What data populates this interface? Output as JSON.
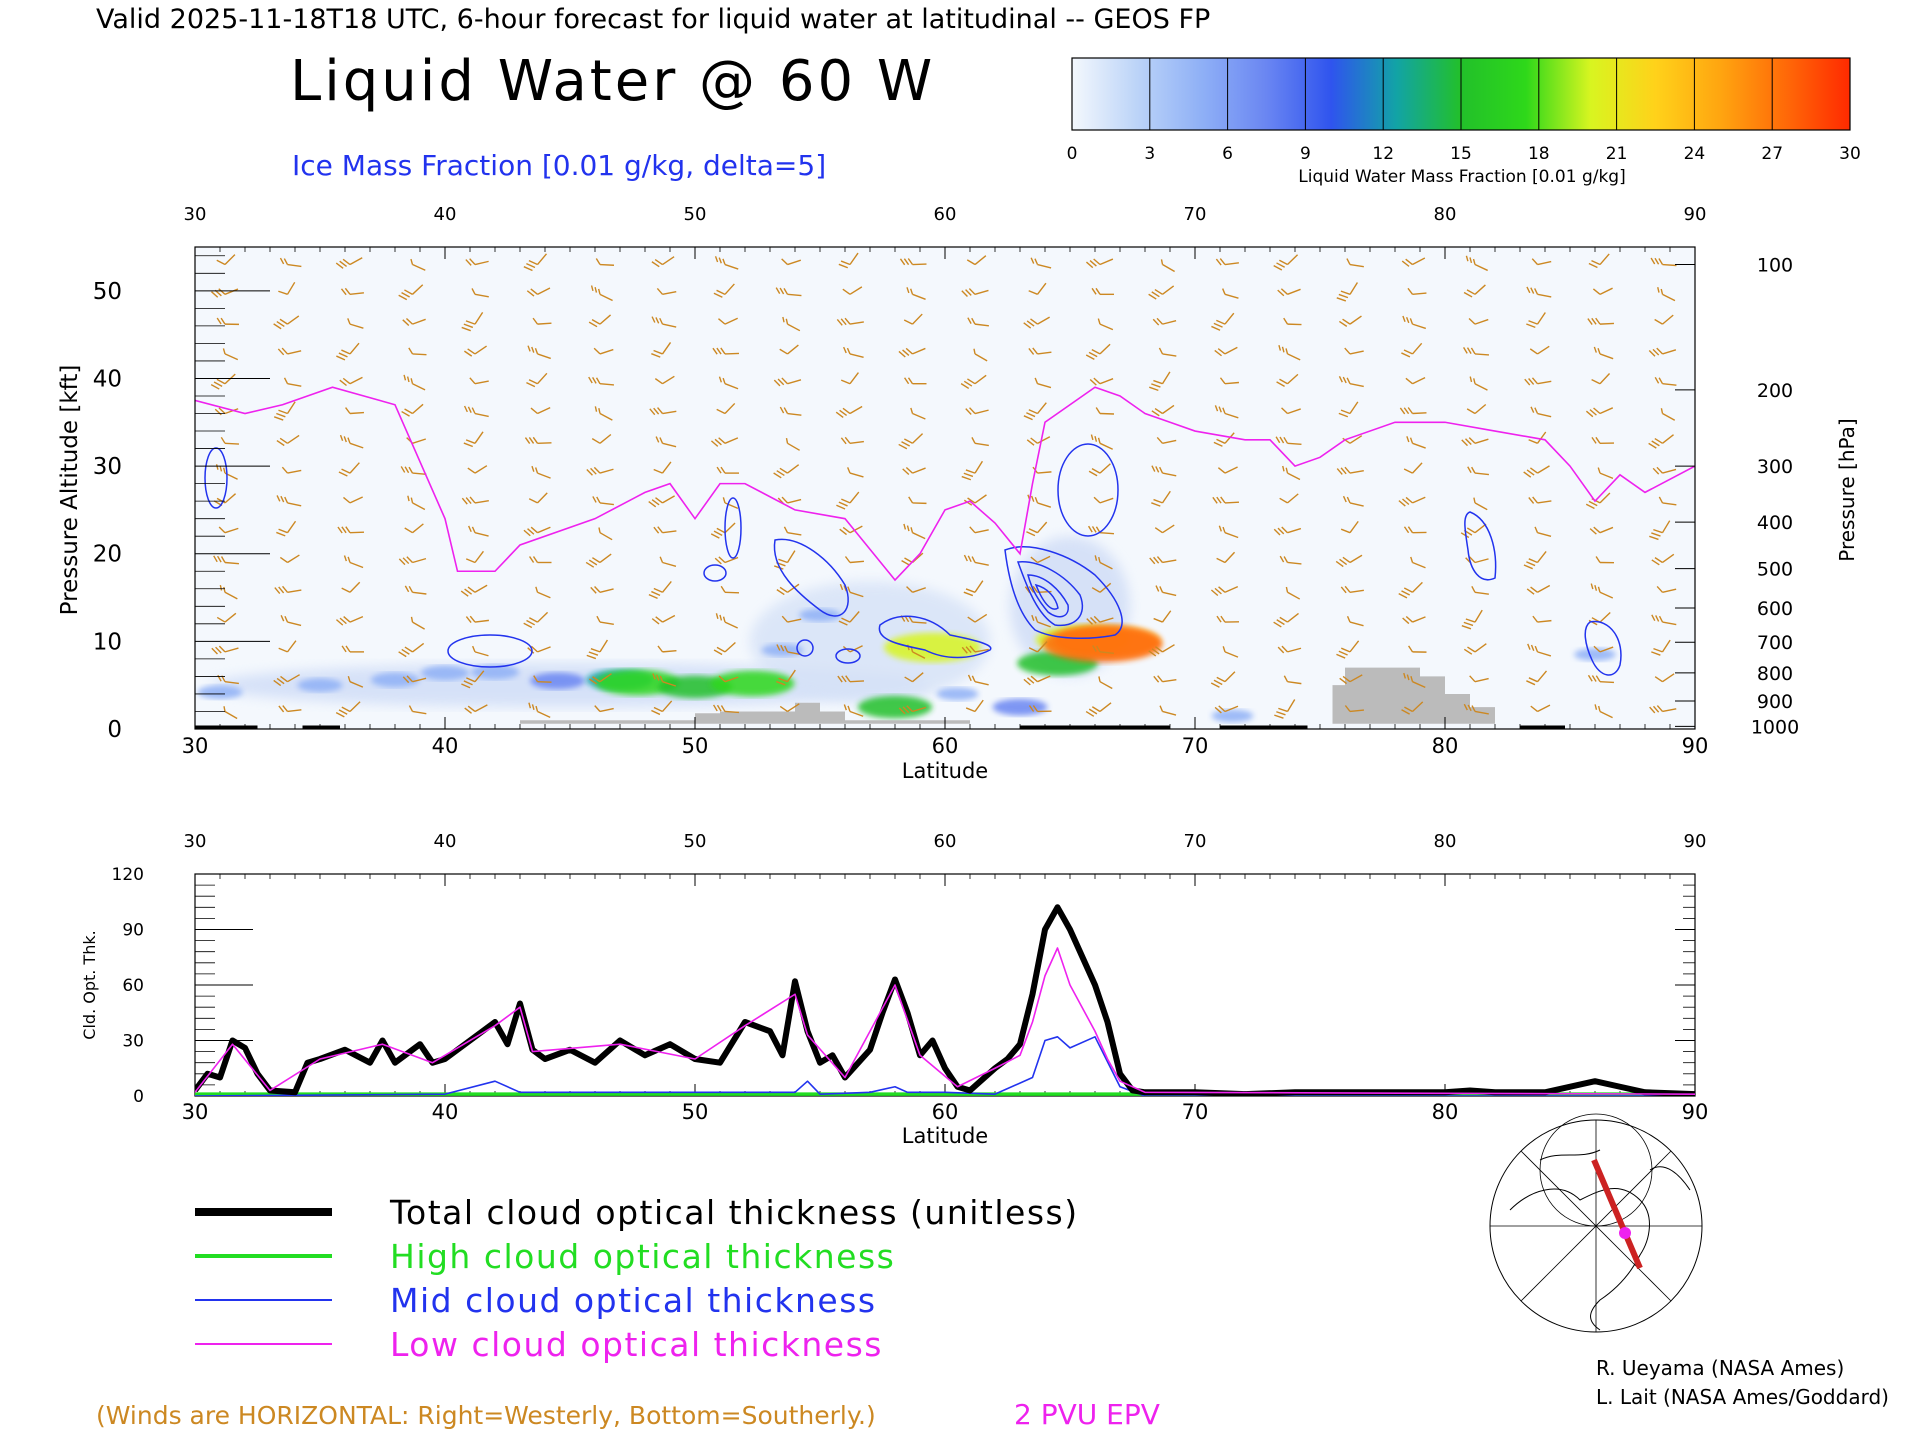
{
  "header": {
    "valid_line": "Valid 2025-11-18T18 UTC, 6-hour forecast for liquid water at latitudinal -- GEOS FP",
    "title": "Liquid Water @ 60 W",
    "subtitle": "Ice Mass Fraction [0.01 g/kg, delta=5]"
  },
  "colorbar": {
    "ticks": [
      "0",
      "3",
      "6",
      "9",
      "12",
      "15",
      "18",
      "21",
      "24",
      "27",
      "30"
    ],
    "label": "Liquid Water Mass Fraction [0.01 g/kg]",
    "colors": [
      "#f4f8fd",
      "#bcd4f8",
      "#8fb0f6",
      "#6a86f2",
      "#2f54ee",
      "#12a3a6",
      "#22c02a",
      "#2ed81a",
      "#d8f520",
      "#ffd21a",
      "#ffa510",
      "#ff6a08",
      "#ff2a00"
    ]
  },
  "legend": {
    "items": [
      {
        "label": "Total cloud optical thickness (unitless)",
        "color": "#000000"
      },
      {
        "label": "High cloud optical thickness",
        "color": "#22dd22"
      },
      {
        "label": "Mid cloud optical thickness",
        "color": "#2233ee"
      },
      {
        "label": "Low cloud optical thickness",
        "color": "#ee22ee"
      }
    ]
  },
  "footer": {
    "winds_note": "(Winds are HORIZONTAL: Right=Westerly, Bottom=Southerly.)",
    "epv_label": "2 PVU EPV",
    "credit_1": "R. Ueyama (NASA Ames)",
    "credit_2": "L. Lait (NASA Ames/Goddard)"
  },
  "colors": {
    "wind": "#cc8822",
    "epv": "#ee22ee",
    "ice": "#2233ee",
    "terrain": "#bbbbbb"
  },
  "chart_data": [
    {
      "type": "heatmap",
      "xlabel": "Latitude",
      "ylabel": "Pressure Altitude [kft]",
      "y2label": "Pressure [hPa]",
      "xlim": [
        30,
        90
      ],
      "ylim": [
        0,
        55
      ],
      "x_ticks": [
        "30",
        "40",
        "50",
        "60",
        "70",
        "80",
        "90"
      ],
      "y_ticks": [
        "0",
        "10",
        "20",
        "30",
        "40",
        "50"
      ],
      "y2_ticks": [
        {
          "label": "100",
          "kft": 53
        },
        {
          "label": "200",
          "kft": 38.7
        },
        {
          "label": "300",
          "kft": 30
        },
        {
          "label": "400",
          "kft": 23.6
        },
        {
          "label": "500",
          "kft": 18.3
        },
        {
          "label": "600",
          "kft": 13.8
        },
        {
          "label": "700",
          "kft": 9.9
        },
        {
          "label": "800",
          "kft": 6.4
        },
        {
          "label": "900",
          "kft": 3.2
        },
        {
          "label": "1000",
          "kft": 0.3
        }
      ],
      "epv_2pvu_kft": [
        [
          30,
          37.5
        ],
        [
          32,
          36
        ],
        [
          33.5,
          37
        ],
        [
          35.5,
          39
        ],
        [
          38,
          37
        ],
        [
          40,
          24
        ],
        [
          40.5,
          18
        ],
        [
          42,
          18
        ],
        [
          43,
          21
        ],
        [
          46,
          24
        ],
        [
          48,
          27
        ],
        [
          49,
          28
        ],
        [
          50,
          24
        ],
        [
          51,
          28
        ],
        [
          52,
          28
        ],
        [
          54,
          25
        ],
        [
          56,
          24
        ],
        [
          58,
          17
        ],
        [
          59,
          20
        ],
        [
          60,
          25
        ],
        [
          61,
          26
        ],
        [
          62,
          23.5
        ],
        [
          63,
          20
        ],
        [
          63.5,
          28
        ],
        [
          64,
          35
        ],
        [
          66,
          39
        ],
        [
          67,
          38
        ],
        [
          68,
          36
        ],
        [
          69,
          35
        ],
        [
          70,
          34
        ],
        [
          72,
          33
        ],
        [
          73,
          33
        ],
        [
          74,
          30
        ],
        [
          75,
          31
        ],
        [
          76,
          33
        ],
        [
          78,
          35
        ],
        [
          80,
          35
        ],
        [
          82,
          34
        ],
        [
          84,
          33
        ],
        [
          85,
          30
        ],
        [
          86,
          26
        ],
        [
          87,
          29
        ],
        [
          88,
          27
        ],
        [
          90,
          30
        ]
      ],
      "terrain_kft": [
        [
          43,
          0.6
        ],
        [
          43,
          1
        ],
        [
          50,
          1
        ],
        [
          50,
          1.8
        ],
        [
          51,
          1.8
        ],
        [
          51,
          2
        ],
        [
          54,
          2
        ],
        [
          54,
          3
        ],
        [
          55,
          3
        ],
        [
          55,
          2
        ],
        [
          56,
          2
        ],
        [
          56,
          1
        ],
        [
          61,
          1
        ],
        [
          61,
          0.6
        ],
        [
          75.5,
          0.6
        ],
        [
          75.5,
          5
        ],
        [
          76,
          5
        ],
        [
          76,
          7
        ],
        [
          79,
          7
        ],
        [
          79,
          6
        ],
        [
          80,
          6
        ],
        [
          80,
          4
        ],
        [
          81,
          4
        ],
        [
          81,
          2.5
        ],
        [
          82,
          2.5
        ],
        [
          82,
          0.6
        ]
      ],
      "liquid_water_blobs": [
        {
          "lat": 31,
          "kft": 4.2,
          "value": 5
        },
        {
          "lat": 35,
          "kft": 5,
          "value": 5
        },
        {
          "lat": 38,
          "kft": 5.6,
          "value": 6
        },
        {
          "lat": 40,
          "kft": 6.4,
          "value": 6
        },
        {
          "lat": 42,
          "kft": 6.5,
          "value": 6
        },
        {
          "lat": 44.5,
          "kft": 5.5,
          "value": 8
        },
        {
          "lat": 47,
          "kft": 5.6,
          "value": 12
        },
        {
          "lat": 47.7,
          "kft": 5.3,
          "value": 17
        },
        {
          "lat": 50,
          "kft": 4.8,
          "value": 14
        },
        {
          "lat": 52.3,
          "kft": 5.2,
          "value": 17
        },
        {
          "lat": 53.5,
          "kft": 9,
          "value": 4
        },
        {
          "lat": 55,
          "kft": 13,
          "value": 4
        },
        {
          "lat": 58,
          "kft": 2.5,
          "value": 14
        },
        {
          "lat": 59.5,
          "kft": 9.3,
          "value": 21
        },
        {
          "lat": 60.5,
          "kft": 4,
          "value": 4
        },
        {
          "lat": 63,
          "kft": 2.5,
          "value": 8
        },
        {
          "lat": 64.5,
          "kft": 7.5,
          "value": 16
        },
        {
          "lat": 65.5,
          "kft": 10.2,
          "value": 20
        },
        {
          "lat": 66.5,
          "kft": 10,
          "value": 24
        },
        {
          "lat": 66.3,
          "kft": 9.7,
          "value": 28
        },
        {
          "lat": 71.5,
          "kft": 1.5,
          "value": 4
        },
        {
          "lat": 86,
          "kft": 8.5,
          "value": 4
        }
      ]
    },
    {
      "type": "line",
      "xlabel": "Latitude",
      "ylabel": "Cld. Opt. Thk.",
      "xlim": [
        30,
        90
      ],
      "ylim": [
        0,
        120
      ],
      "x_ticks": [
        "30",
        "40",
        "50",
        "60",
        "70",
        "80",
        "90"
      ],
      "y_ticks": [
        "0",
        "30",
        "60",
        "90",
        "120"
      ],
      "series": [
        {
          "name": "Total cloud optical thickness (unitless)",
          "color": "#000000",
          "points": [
            [
              30,
              3
            ],
            [
              30.5,
              12
            ],
            [
              31,
              10
            ],
            [
              31.5,
              30
            ],
            [
              32,
              26
            ],
            [
              32.5,
              12
            ],
            [
              33,
              3
            ],
            [
              34,
              2
            ],
            [
              34.5,
              18
            ],
            [
              35,
              20
            ],
            [
              36,
              25
            ],
            [
              37,
              18
            ],
            [
              37.5,
              30
            ],
            [
              38,
              18
            ],
            [
              39,
              28
            ],
            [
              39.5,
              18
            ],
            [
              40,
              20
            ],
            [
              41,
              30
            ],
            [
              42,
              40
            ],
            [
              42.5,
              28
            ],
            [
              43,
              50
            ],
            [
              43.5,
              25
            ],
            [
              44,
              20
            ],
            [
              45,
              25
            ],
            [
              46,
              18
            ],
            [
              47,
              30
            ],
            [
              48,
              22
            ],
            [
              49,
              28
            ],
            [
              50,
              20
            ],
            [
              51,
              18
            ],
            [
              52,
              40
            ],
            [
              53,
              35
            ],
            [
              53.5,
              22
            ],
            [
              54,
              62
            ],
            [
              54.5,
              35
            ],
            [
              55,
              18
            ],
            [
              55.5,
              22
            ],
            [
              56,
              10
            ],
            [
              57,
              25
            ],
            [
              57.5,
              45
            ],
            [
              58,
              63
            ],
            [
              58.5,
              45
            ],
            [
              59,
              22
            ],
            [
              59.5,
              30
            ],
            [
              60,
              15
            ],
            [
              60.5,
              5
            ],
            [
              61,
              3
            ],
            [
              62,
              15
            ],
            [
              62.5,
              20
            ],
            [
              63,
              28
            ],
            [
              63.5,
              55
            ],
            [
              64,
              90
            ],
            [
              64.5,
              102
            ],
            [
              65,
              90
            ],
            [
              66,
              60
            ],
            [
              66.5,
              40
            ],
            [
              67,
              12
            ],
            [
              67.5,
              3
            ],
            [
              68,
              2
            ],
            [
              70,
              2
            ],
            [
              72,
              1
            ],
            [
              74,
              2
            ],
            [
              76,
              2
            ],
            [
              78,
              2
            ],
            [
              80,
              2
            ],
            [
              81,
              3
            ],
            [
              82,
              2
            ],
            [
              84,
              2
            ],
            [
              86,
              8
            ],
            [
              87,
              5
            ],
            [
              88,
              2
            ],
            [
              90,
              1
            ]
          ]
        },
        {
          "name": "High cloud optical thickness",
          "color": "#22dd22",
          "points": [
            [
              30,
              1
            ],
            [
              90,
              1
            ]
          ]
        },
        {
          "name": "Mid cloud optical thickness",
          "color": "#2233ee",
          "points": [
            [
              30,
              0
            ],
            [
              40,
              1
            ],
            [
              42,
              8
            ],
            [
              43,
              2
            ],
            [
              54,
              2
            ],
            [
              54.5,
              8
            ],
            [
              55,
              1
            ],
            [
              57,
              2
            ],
            [
              58,
              5
            ],
            [
              58.5,
              2
            ],
            [
              60,
              2
            ],
            [
              62,
              1
            ],
            [
              63.5,
              10
            ],
            [
              64,
              30
            ],
            [
              64.5,
              32
            ],
            [
              65,
              26
            ],
            [
              66,
              32
            ],
            [
              67,
              5
            ],
            [
              68,
              0
            ],
            [
              90,
              0
            ]
          ]
        },
        {
          "name": "Low cloud optical thickness",
          "color": "#ee22ee",
          "points": [
            [
              30,
              2
            ],
            [
              31.5,
              28
            ],
            [
              33,
              3
            ],
            [
              35,
              20
            ],
            [
              37.5,
              28
            ],
            [
              39.5,
              18
            ],
            [
              42,
              38
            ],
            [
              43,
              48
            ],
            [
              43.5,
              24
            ],
            [
              47,
              28
            ],
            [
              50,
              20
            ],
            [
              52,
              38
            ],
            [
              54,
              55
            ],
            [
              54.5,
              33
            ],
            [
              56,
              10
            ],
            [
              58,
              60
            ],
            [
              59,
              22
            ],
            [
              60.5,
              5
            ],
            [
              62,
              15
            ],
            [
              63,
              22
            ],
            [
              63.5,
              40
            ],
            [
              64,
              65
            ],
            [
              64.5,
              80
            ],
            [
              65,
              60
            ],
            [
              66,
              35
            ],
            [
              66.5,
              20
            ],
            [
              67,
              8
            ],
            [
              68,
              2
            ],
            [
              90,
              1
            ]
          ]
        }
      ]
    }
  ]
}
